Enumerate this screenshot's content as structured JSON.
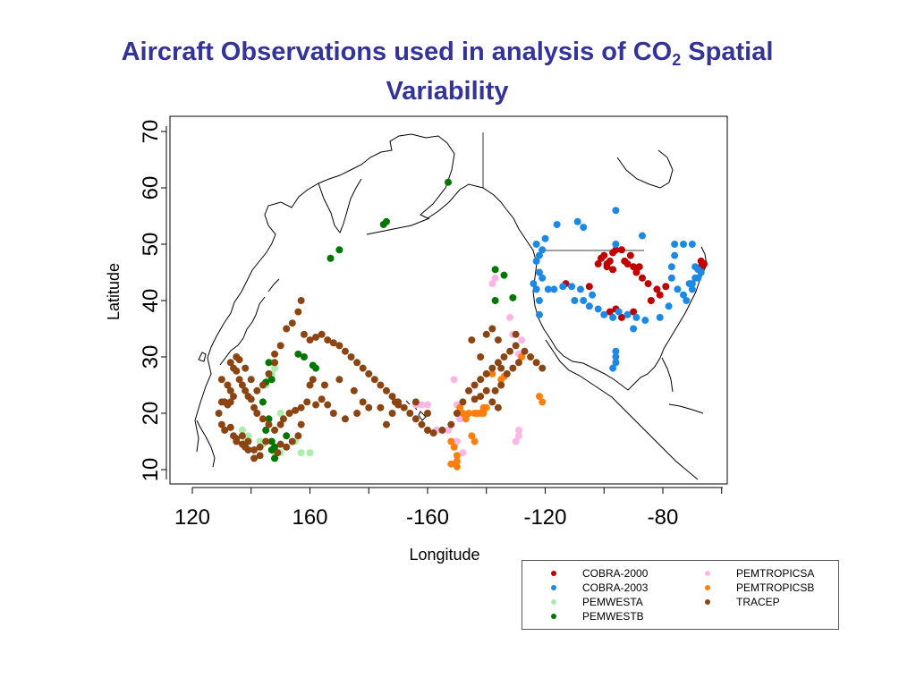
{
  "title": {
    "line1_pre": "Aircraft Observations used in analysis of CO",
    "line1_sub": "2",
    "line1_post": " Spatial",
    "line2": "Variability"
  },
  "chart_data": {
    "type": "scatter",
    "title": "Aircraft Observations used in analysis of CO2 Spatial Variability",
    "xlabel": "Longitude",
    "ylabel": "Latitude",
    "xlim": [
      117,
      297
    ],
    "ylim": [
      9,
      71
    ],
    "x_axis_note": "longitude in degrees east; tick labels printed with westward longitudes as negative",
    "x_ticks": [
      {
        "value": 120,
        "label": "120"
      },
      {
        "value": 160,
        "label": "160"
      },
      {
        "value": 200,
        "label": "-160"
      },
      {
        "value": 240,
        "label": "-120"
      },
      {
        "value": 280,
        "label": "-80"
      }
    ],
    "y_ticks": [
      10,
      20,
      30,
      40,
      50,
      60,
      70
    ],
    "grid": false,
    "legend_position": "bottom-right",
    "series": [
      {
        "name": "COBRA-2000",
        "color": "#c00000",
        "points": [
          [
            258,
            46.5
          ],
          [
            259,
            47.5
          ],
          [
            260,
            48
          ],
          [
            261,
            46
          ],
          [
            262,
            47
          ],
          [
            263,
            48.5
          ],
          [
            264,
            49
          ],
          [
            267,
            47
          ],
          [
            268,
            46.5
          ],
          [
            269,
            48
          ],
          [
            270,
            46
          ],
          [
            271,
            45
          ],
          [
            272,
            46
          ],
          [
            273,
            44
          ],
          [
            275,
            43
          ],
          [
            278,
            42
          ],
          [
            281,
            42.5
          ],
          [
            276,
            40
          ],
          [
            266,
            37
          ],
          [
            264,
            38.5
          ],
          [
            270,
            38
          ],
          [
            255,
            42.5
          ],
          [
            262,
            38
          ],
          [
            247,
            43
          ],
          [
            261,
            46.5
          ],
          [
            263,
            45.5
          ],
          [
            293,
            47
          ],
          [
            293,
            46
          ],
          [
            294,
            46.5
          ],
          [
            266,
            49
          ],
          [
            279,
            41
          ]
        ]
      },
      {
        "name": "COBRA-2003",
        "color": "#1e88e5",
        "points": [
          [
            237,
            50
          ],
          [
            237,
            47
          ],
          [
            238,
            45
          ],
          [
            237,
            42
          ],
          [
            238,
            40
          ],
          [
            238,
            37.5
          ],
          [
            239,
            49
          ],
          [
            240,
            51
          ],
          [
            236,
            43
          ],
          [
            244,
            53.5
          ],
          [
            251,
            54
          ],
          [
            253,
            53
          ],
          [
            264,
            56
          ],
          [
            273,
            51.5
          ],
          [
            284,
            50
          ],
          [
            287,
            50
          ],
          [
            290,
            50
          ],
          [
            284,
            48
          ],
          [
            283,
            46
          ],
          [
            283,
            44
          ],
          [
            290,
            43
          ],
          [
            291,
            44
          ],
          [
            293,
            45
          ],
          [
            292,
            45.5
          ],
          [
            285,
            42
          ],
          [
            287,
            41
          ],
          [
            288,
            40
          ],
          [
            282,
            39
          ],
          [
            279,
            37
          ],
          [
            274,
            36.5
          ],
          [
            271,
            37
          ],
          [
            268,
            37.5
          ],
          [
            265,
            38
          ],
          [
            263,
            37
          ],
          [
            260,
            37.5
          ],
          [
            258,
            38.5
          ],
          [
            255,
            39
          ],
          [
            253,
            40
          ],
          [
            252,
            42
          ],
          [
            249,
            42.5
          ],
          [
            246,
            42.5
          ],
          [
            243,
            42
          ],
          [
            241,
            42
          ],
          [
            264,
            31
          ],
          [
            264,
            29
          ],
          [
            263,
            28
          ],
          [
            264,
            30
          ],
          [
            239,
            44
          ],
          [
            238,
            48
          ],
          [
            290,
            42
          ],
          [
            289,
            43
          ],
          [
            292,
            44
          ],
          [
            264,
            50
          ],
          [
            256,
            41
          ],
          [
            250,
            40
          ],
          [
            270,
            35
          ],
          [
            291,
            46
          ]
        ]
      },
      {
        "name": "PEMWESTA",
        "color": "#aaeeaa",
        "points": [
          [
            138,
            15
          ],
          [
            139,
            16
          ],
          [
            143,
            15
          ],
          [
            144,
            14.5
          ],
          [
            145,
            25
          ],
          [
            146,
            26
          ],
          [
            147,
            27
          ],
          [
            148,
            28
          ],
          [
            147,
            29
          ],
          [
            150,
            13
          ],
          [
            155,
            15
          ],
          [
            157,
            13
          ],
          [
            160,
            13
          ],
          [
            148,
            13
          ],
          [
            146,
            18
          ],
          [
            137,
            17
          ],
          [
            150,
            20
          ]
        ]
      },
      {
        "name": "PEMWESTB",
        "color": "#007700",
        "points": [
          [
            146,
            29
          ],
          [
            147,
            26
          ],
          [
            145,
            25.5
          ],
          [
            144,
            22
          ],
          [
            146,
            19
          ],
          [
            145,
            17
          ],
          [
            147,
            15
          ],
          [
            148,
            14
          ],
          [
            148,
            12
          ],
          [
            147,
            13.5
          ],
          [
            152,
            16
          ],
          [
            156,
            30.5
          ],
          [
            158,
            30
          ],
          [
            161,
            28.5
          ],
          [
            162,
            28
          ],
          [
            167,
            47.5
          ],
          [
            170,
            49
          ],
          [
            186,
            54
          ],
          [
            185,
            53.5
          ],
          [
            207,
            61
          ],
          [
            223,
            40
          ],
          [
            223,
            45.5
          ],
          [
            226,
            44.5
          ],
          [
            229,
            40.5
          ],
          [
            211,
            20
          ]
        ]
      },
      {
        "name": "PEMTROPICSA",
        "color": "#ffb6e6",
        "points": [
          [
            222,
            43
          ],
          [
            223,
            44
          ],
          [
            228,
            37
          ],
          [
            229,
            34
          ],
          [
            231,
            30.5
          ],
          [
            232,
            33
          ],
          [
            233,
            31
          ],
          [
            230,
            15
          ],
          [
            231,
            17
          ],
          [
            231,
            16
          ],
          [
            209,
            26
          ],
          [
            210,
            21.5
          ],
          [
            200,
            21.5
          ],
          [
            198,
            21.5
          ],
          [
            196,
            21.5
          ],
          [
            207,
            17
          ],
          [
            211,
            19
          ],
          [
            210,
            15
          ],
          [
            212,
            13
          ],
          [
            203,
            17
          ]
        ]
      },
      {
        "name": "PEMTROPICSB",
        "color": "#ff7f0e",
        "points": [
          [
            208,
            11
          ],
          [
            210,
            11.5
          ],
          [
            210,
            10.5
          ],
          [
            210,
            12.5
          ],
          [
            209,
            14
          ],
          [
            208,
            15
          ],
          [
            214,
            20
          ],
          [
            216,
            20
          ],
          [
            217,
            20
          ],
          [
            218,
            20
          ],
          [
            219,
            20
          ],
          [
            219,
            21
          ],
          [
            220,
            21
          ],
          [
            225,
            26
          ],
          [
            226,
            26.5
          ],
          [
            232,
            30
          ],
          [
            238,
            23
          ],
          [
            239,
            22
          ],
          [
            211,
            21
          ],
          [
            212,
            20
          ],
          [
            213,
            19
          ],
          [
            215,
            16
          ],
          [
            216,
            15
          ],
          [
            222,
            27
          ]
        ]
      },
      {
        "name": "TRACEP",
        "color": "#8b4513",
        "points": [
          [
            130,
            26
          ],
          [
            132,
            25
          ],
          [
            133,
            24
          ],
          [
            134,
            23
          ],
          [
            133,
            22
          ],
          [
            132,
            21.5
          ],
          [
            131,
            22
          ],
          [
            130,
            22
          ],
          [
            129,
            20
          ],
          [
            130,
            18
          ],
          [
            131,
            17
          ],
          [
            133,
            17.5
          ],
          [
            134,
            16
          ],
          [
            135,
            15.5
          ],
          [
            137,
            14.5
          ],
          [
            138,
            14
          ],
          [
            139,
            13.5
          ],
          [
            141,
            12
          ],
          [
            143,
            12.5
          ],
          [
            133,
            29
          ],
          [
            134,
            28
          ],
          [
            135,
            27.5
          ],
          [
            136,
            26
          ],
          [
            137,
            25
          ],
          [
            138,
            24
          ],
          [
            139,
            23
          ],
          [
            140,
            22.5
          ],
          [
            141,
            21
          ],
          [
            142,
            20
          ],
          [
            144,
            19
          ],
          [
            146,
            18
          ],
          [
            148,
            17
          ],
          [
            150,
            18
          ],
          [
            151,
            19
          ],
          [
            153,
            20
          ],
          [
            155,
            20.5
          ],
          [
            157,
            21
          ],
          [
            159,
            22
          ],
          [
            160,
            25
          ],
          [
            161,
            26
          ],
          [
            152,
            35
          ],
          [
            154,
            36
          ],
          [
            156,
            38
          ],
          [
            157,
            40
          ],
          [
            158,
            34
          ],
          [
            160,
            33
          ],
          [
            162,
            33.5
          ],
          [
            164,
            34
          ],
          [
            166,
            33
          ],
          [
            168,
            32.5
          ],
          [
            170,
            32
          ],
          [
            172,
            31
          ],
          [
            174,
            30
          ],
          [
            176,
            29
          ],
          [
            178,
            28
          ],
          [
            180,
            27
          ],
          [
            182,
            26
          ],
          [
            184,
            25
          ],
          [
            186,
            24
          ],
          [
            188,
            23
          ],
          [
            190,
            22
          ],
          [
            192,
            21
          ],
          [
            194,
            20
          ],
          [
            196,
            19
          ],
          [
            198,
            18
          ],
          [
            200,
            17
          ],
          [
            202,
            16.5
          ],
          [
            205,
            17
          ],
          [
            208,
            18
          ],
          [
            210,
            20
          ],
          [
            212,
            22
          ],
          [
            214,
            24
          ],
          [
            216,
            25
          ],
          [
            218,
            26
          ],
          [
            220,
            27
          ],
          [
            222,
            28
          ],
          [
            224,
            29
          ],
          [
            226,
            30
          ],
          [
            228,
            31
          ],
          [
            230,
            32
          ],
          [
            233,
            31
          ],
          [
            235,
            30
          ],
          [
            237,
            29
          ],
          [
            239,
            28
          ],
          [
            220,
            34
          ],
          [
            222,
            35
          ],
          [
            224,
            33
          ],
          [
            215,
            33
          ],
          [
            218,
            30
          ],
          [
            230,
            34
          ],
          [
            225,
            28
          ],
          [
            200,
            20
          ],
          [
            196,
            22
          ],
          [
            176,
            20
          ],
          [
            178,
            22
          ],
          [
            172,
            19
          ],
          [
            168,
            20
          ],
          [
            166,
            21.5
          ],
          [
            164,
            22.5
          ],
          [
            162,
            21.5
          ],
          [
            165,
            25
          ],
          [
            170,
            26
          ],
          [
            175,
            24
          ],
          [
            180,
            21
          ],
          [
            184,
            21
          ],
          [
            186,
            18
          ],
          [
            188,
            20
          ],
          [
            189,
            22
          ],
          [
            190,
            21.5
          ],
          [
            157,
            18
          ],
          [
            156,
            16
          ],
          [
            154,
            15
          ],
          [
            152,
            14
          ],
          [
            150,
            14.5
          ],
          [
            149,
            13
          ],
          [
            145,
            15
          ],
          [
            143,
            14
          ],
          [
            141,
            13.5
          ],
          [
            139,
            15
          ],
          [
            137,
            16
          ],
          [
            135,
            15
          ],
          [
            148,
            30.5
          ],
          [
            150,
            32
          ],
          [
            148,
            29
          ],
          [
            146,
            27
          ],
          [
            144,
            25
          ],
          [
            142,
            24
          ],
          [
            140,
            26
          ],
          [
            138,
            28
          ],
          [
            136,
            29.5
          ],
          [
            135,
            30
          ],
          [
            231,
            29
          ],
          [
            229,
            28
          ],
          [
            227,
            27
          ],
          [
            225,
            25
          ],
          [
            223,
            24
          ],
          [
            220,
            24
          ],
          [
            218,
            23
          ],
          [
            216,
            22.5
          ],
          [
            222,
            22
          ],
          [
            224,
            21
          ]
        ]
      }
    ]
  }
}
